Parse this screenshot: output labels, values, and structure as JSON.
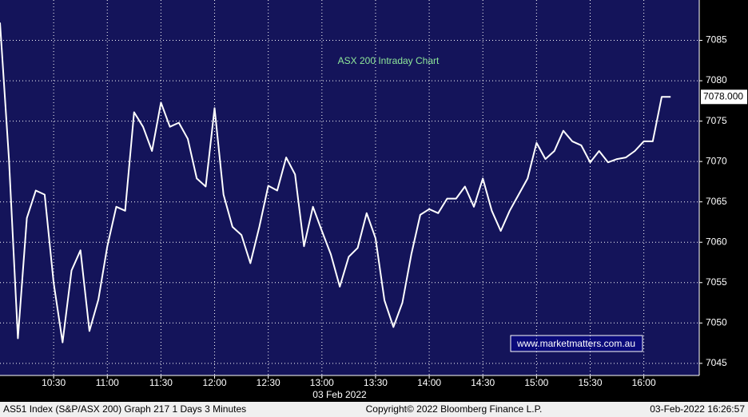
{
  "chart_data": {
    "type": "line",
    "title": "ASX 200 Intraday Chart",
    "x_label": "03 Feb 2022",
    "annotation": "www.marketmatters.com.au",
    "footer": {
      "left": "AS51 Index (S&P/ASX 200) Graph 217 1 Days 3 Minutes",
      "center": "Copyright© 2022 Bloomberg Finance L.P.",
      "right": "03-Feb-2022 16:26:57"
    },
    "color": "#ffffff",
    "background": "#14145a",
    "grid": true,
    "x": [
      "10:00",
      "10:05",
      "10:10",
      "10:15",
      "10:20",
      "10:25",
      "10:30",
      "10:35",
      "10:40",
      "10:45",
      "10:50",
      "10:55",
      "11:00",
      "11:05",
      "11:10",
      "11:15",
      "11:20",
      "11:25",
      "11:30",
      "11:35",
      "11:40",
      "11:45",
      "11:50",
      "11:55",
      "12:00",
      "12:05",
      "12:10",
      "12:15",
      "12:20",
      "12:25",
      "12:30",
      "12:35",
      "12:40",
      "12:45",
      "12:50",
      "12:55",
      "13:00",
      "13:05",
      "13:10",
      "13:15",
      "13:20",
      "13:25",
      "13:30",
      "13:35",
      "13:40",
      "13:45",
      "13:50",
      "13:55",
      "14:00",
      "14:05",
      "14:10",
      "14:15",
      "14:20",
      "14:25",
      "14:30",
      "14:35",
      "14:40",
      "14:45",
      "14:50",
      "14:55",
      "15:00",
      "15:05",
      "15:10",
      "15:15",
      "15:20",
      "15:25",
      "15:30",
      "15:35",
      "15:40",
      "15:45",
      "15:50",
      "15:55",
      "16:00",
      "16:05",
      "16:10",
      "16:15"
    ],
    "values": [
      7087.2,
      7070.3,
      7048.1,
      7063.0,
      7066.4,
      7065.9,
      7055.0,
      7047.6,
      7056.5,
      7059.0,
      7049.0,
      7052.9,
      7059.5,
      7064.4,
      7063.9,
      7076.1,
      7074.3,
      7071.3,
      7077.3,
      7074.3,
      7074.8,
      7072.8,
      7067.9,
      7066.9,
      7076.6,
      7065.9,
      7061.9,
      7060.9,
      7057.4,
      7061.9,
      7067.0,
      7066.4,
      7070.5,
      7068.4,
      7059.5,
      7064.4,
      7061.4,
      7058.5,
      7054.5,
      7058.2,
      7059.3,
      7063.6,
      7060.5,
      7052.8,
      7049.5,
      7052.5,
      7058.5,
      7063.4,
      7064.1,
      7063.6,
      7065.4,
      7065.4,
      7066.9,
      7064.4,
      7067.9,
      7063.9,
      7061.4,
      7063.9,
      7065.9,
      7067.9,
      7072.3,
      7070.3,
      7071.3,
      7073.8,
      7072.5,
      7072.0,
      7069.9,
      7071.3,
      7069.9,
      7070.3,
      7070.5,
      7071.3,
      7072.5,
      7072.5,
      7078,
      7078
    ],
    "last_value": {
      "value": 7078,
      "label": "7078.000"
    },
    "xlim": [
      "10:00",
      "16:31"
    ],
    "xticks": [
      "10:30",
      "11:00",
      "11:30",
      "12:00",
      "12:30",
      "13:00",
      "13:30",
      "14:00",
      "14:30",
      "15:00",
      "15:30",
      "16:00"
    ],
    "ylim": [
      7043.5,
      7090
    ],
    "yticks": [
      7045,
      7050,
      7055,
      7060,
      7065,
      7070,
      7075,
      7080,
      7085
    ]
  }
}
